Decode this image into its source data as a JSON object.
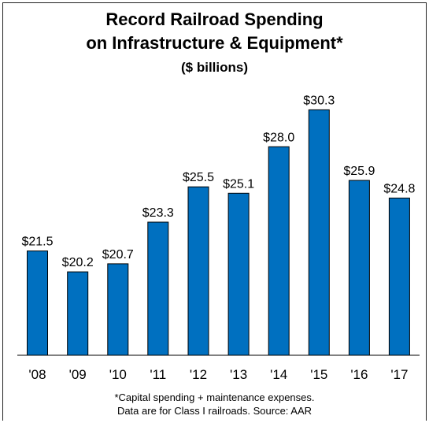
{
  "chart_data": {
    "type": "bar",
    "title": "Record Railroad Spending",
    "title_line2": "on Infrastructure & Equipment*",
    "subtitle": "($ billions)",
    "categories": [
      "'08",
      "'09",
      "'10",
      "'11",
      "'12",
      "'13",
      "'14",
      "'15",
      "'16",
      "'17"
    ],
    "values": [
      21.5,
      20.2,
      20.7,
      23.3,
      25.5,
      25.1,
      28.0,
      30.3,
      25.9,
      24.8
    ],
    "value_labels": [
      "$21.5",
      "$20.2",
      "$20.7",
      "$23.3",
      "$25.5",
      "$25.1",
      "$28.0",
      "$30.3",
      "$25.9",
      "$24.8"
    ],
    "xlabel": "",
    "ylabel": "",
    "ylim": [
      15,
      31.5
    ],
    "grid": false,
    "legend": "none",
    "bar_color": "#0070C0",
    "footnote_line1": "*Capital spending + maintenance  expenses.",
    "footnote_line2": "Data are for Class I railroads.   Source: AAR"
  }
}
